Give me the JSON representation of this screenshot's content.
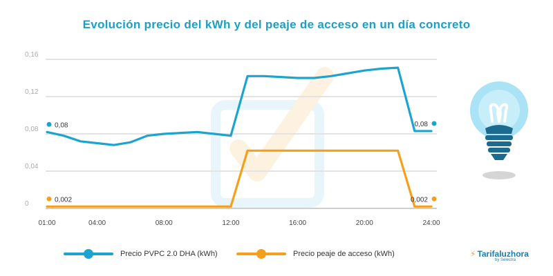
{
  "title": "Evolución precio del kWh y del peaje de acceso en un día concreto",
  "brand": {
    "name": "Tarifaluzhora",
    "sub": "by Selectra"
  },
  "chart_data": {
    "type": "line",
    "title": "Evolución precio del kWh y del peaje de acceso en un día concreto",
    "x_labels": [
      "01:00",
      "04:00",
      "08:00",
      "12:00",
      "16:00",
      "20:00",
      "24:00"
    ],
    "x_label_hours": [
      1,
      4,
      8,
      12,
      16,
      20,
      24
    ],
    "xlim": [
      1,
      24
    ],
    "ylim": [
      0,
      0.16
    ],
    "y_ticks": [
      0,
      0.04,
      0.08,
      0.12,
      0.16
    ],
    "y_tick_labels": [
      "0",
      "0,04",
      "0,08",
      "0,12",
      "0,16"
    ],
    "grid": true,
    "legend_position": "bottom",
    "series": [
      {
        "name": "Precio PVPC 2.0 DHA (kWh)",
        "color": "#1ba4d0",
        "x": [
          1,
          2,
          3,
          4,
          5,
          6,
          7,
          8,
          9,
          10,
          11,
          12,
          13,
          14,
          15,
          16,
          17,
          18,
          19,
          20,
          21,
          22,
          23,
          24
        ],
        "values": [
          0.082,
          0.078,
          0.072,
          0.07,
          0.068,
          0.071,
          0.078,
          0.08,
          0.081,
          0.082,
          0.08,
          0.078,
          0.142,
          0.142,
          0.141,
          0.14,
          0.14,
          0.142,
          0.145,
          0.148,
          0.15,
          0.151,
          0.083,
          0.083
        ],
        "start_label": "0,08",
        "end_label": "0,08"
      },
      {
        "name": "Precio peaje de acceso (kWh)",
        "color": "#f5a01a",
        "x": [
          1,
          2,
          3,
          4,
          5,
          6,
          7,
          8,
          9,
          10,
          11,
          12,
          13,
          14,
          15,
          16,
          17,
          18,
          19,
          20,
          21,
          22,
          23,
          24
        ],
        "values": [
          0.002,
          0.002,
          0.002,
          0.002,
          0.002,
          0.002,
          0.002,
          0.002,
          0.002,
          0.002,
          0.002,
          0.002,
          0.062,
          0.062,
          0.062,
          0.062,
          0.062,
          0.062,
          0.062,
          0.062,
          0.062,
          0.062,
          0.002,
          0.002
        ],
        "start_label": "0,002",
        "end_label": "0,002"
      }
    ]
  }
}
